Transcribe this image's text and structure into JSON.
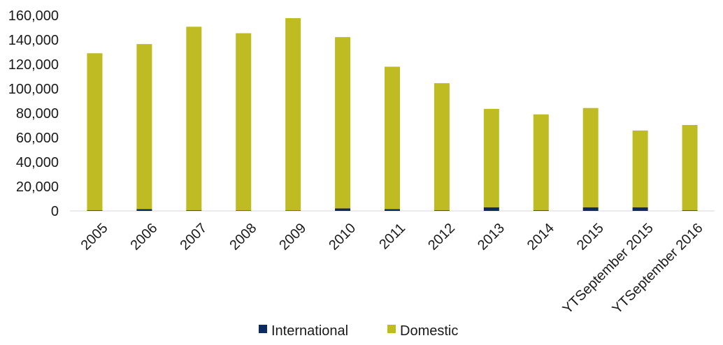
{
  "chart_data": {
    "type": "bar",
    "stacked": true,
    "title": "",
    "xlabel": "",
    "ylabel": "",
    "categories": [
      "2005",
      "2006",
      "2007",
      "2008",
      "2009",
      "2010",
      "2011",
      "2012",
      "2013",
      "2014",
      "2015",
      "YTSeptember 2015",
      "YTSeptember 2016"
    ],
    "series": [
      {
        "name": "International",
        "color": "#0d2b5e",
        "values": [
          500,
          1500,
          500,
          400,
          400,
          2000,
          1500,
          500,
          3000,
          500,
          3000,
          3000,
          500
        ]
      },
      {
        "name": "Domestic",
        "color": "#bfbb22",
        "values": [
          128500,
          135000,
          150200,
          145000,
          157300,
          140200,
          116500,
          104000,
          80500,
          78500,
          81200,
          62800,
          69800
        ]
      }
    ],
    "ylim": [
      0,
      160000
    ],
    "yticks": [
      "0",
      "20,000",
      "40,000",
      "60,000",
      "80,000",
      "100,000",
      "120,000",
      "140,000",
      "160,000"
    ],
    "grid": false,
    "legend_position": "bottom"
  }
}
